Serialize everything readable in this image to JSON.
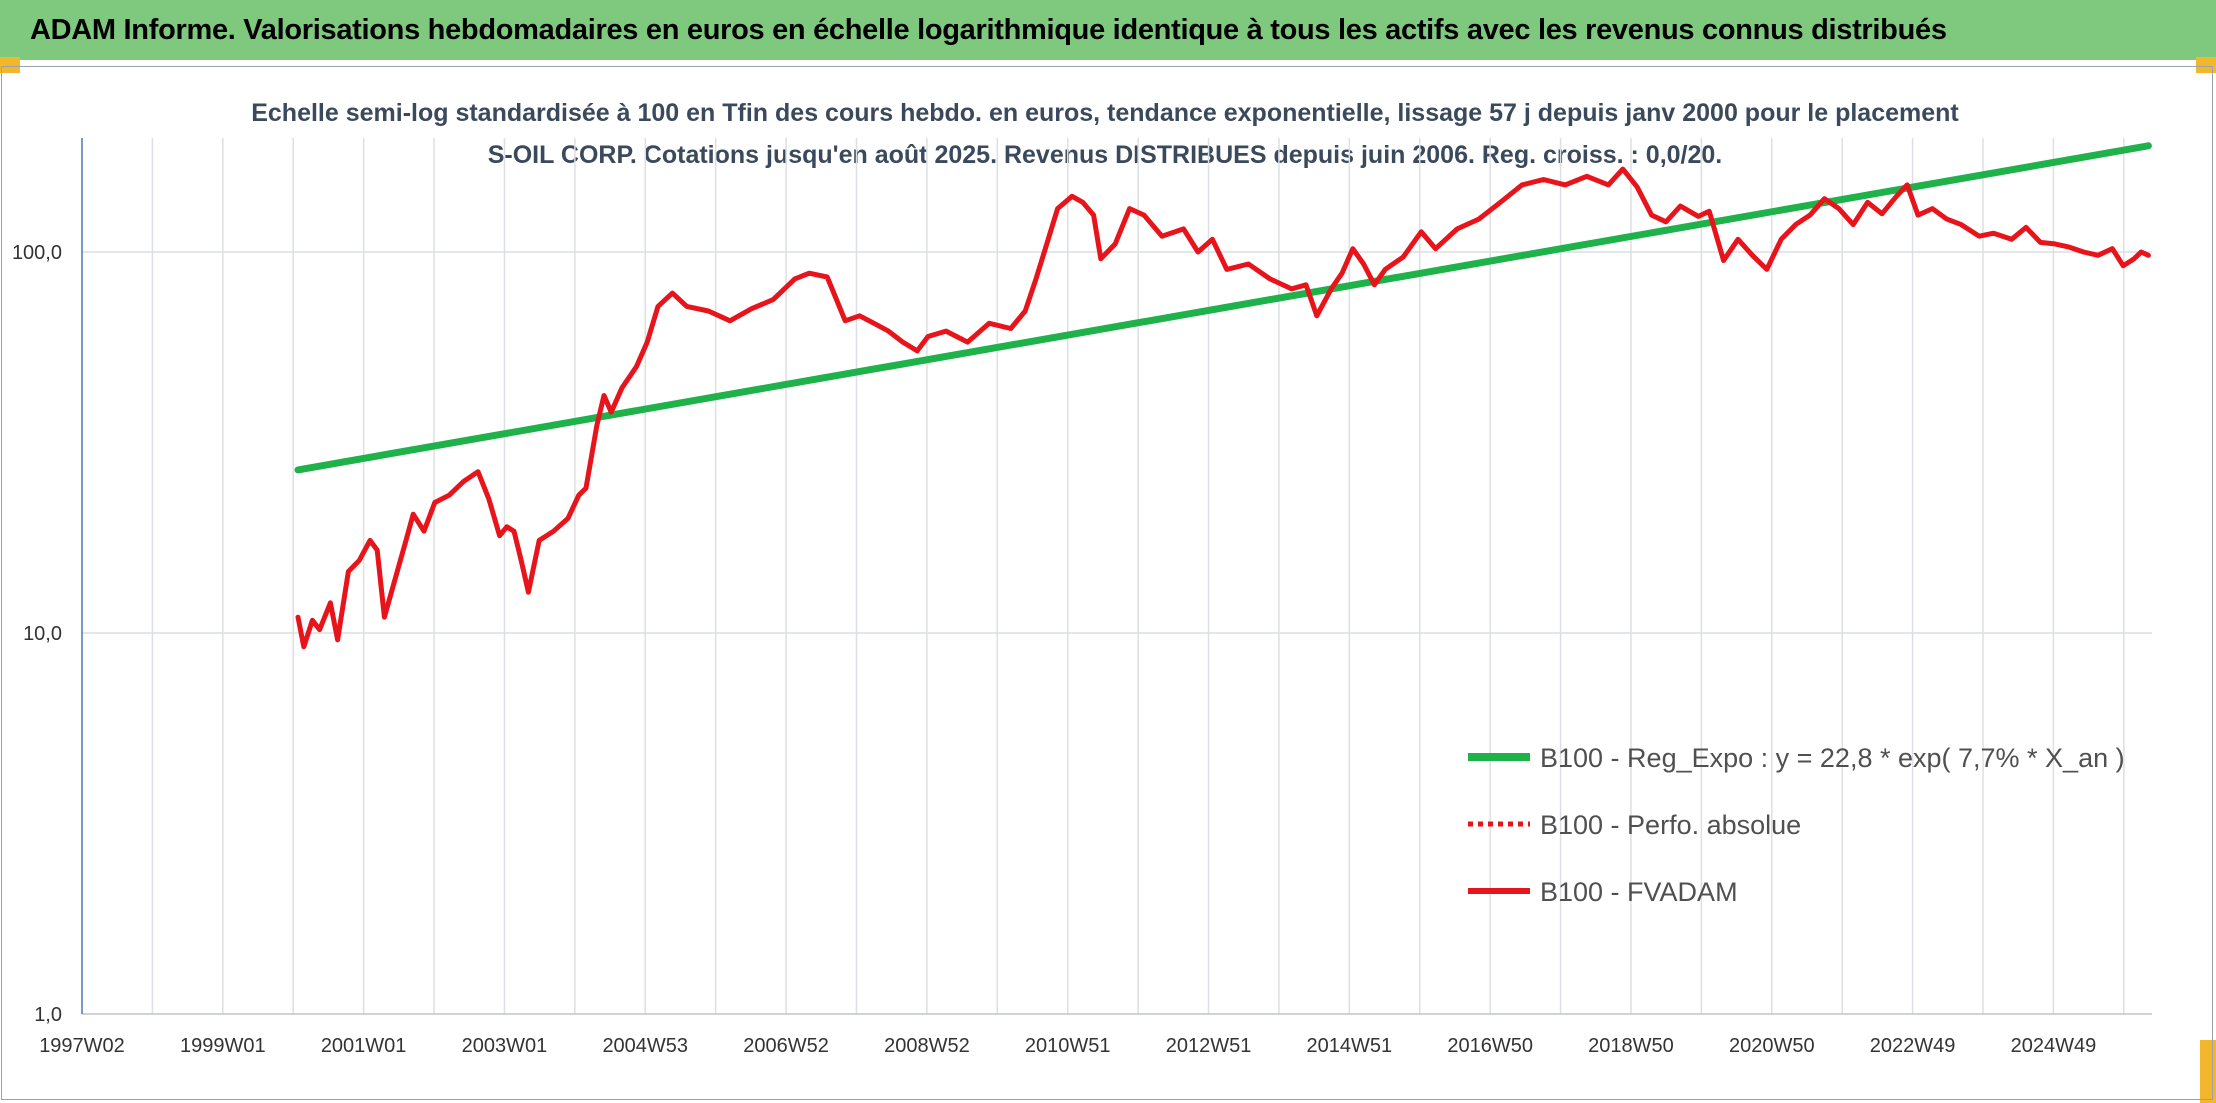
{
  "header": {
    "banner": "ADAM Informe. Valorisations hebdomadaires en euros en échelle logarithmique identique à tous les actifs avec les revenus connus distribués"
  },
  "chart_data": {
    "type": "line",
    "title": "Echelle semi-log standardisée à 100 en Tfin des cours hebdo. en euros, tendance exponentielle, lissage 57 j depuis janv 2000 pour le placement S-OIL CORP. Cotations jusqu'en août 2025. Revenus DISTRIBUES depuis juin 2006. Reg. croiss. : 0,0/20.",
    "xlabel": "",
    "ylabel": "",
    "y_scale": "log",
    "ylim": [
      1,
      200
    ],
    "y_ticks": [
      "1,0",
      "10,0",
      "100,0"
    ],
    "y_tick_values": [
      1,
      10,
      100
    ],
    "xlim": [
      1997.0,
      2025.75
    ],
    "x_ticks": [
      "1997W02",
      "1999W01",
      "2001W01",
      "2003W01",
      "2004W53",
      "2006W52",
      "2008W52",
      "2010W51",
      "2012W51",
      "2014W51",
      "2016W50",
      "2018W50",
      "2020W50",
      "2022W49",
      "2024W49"
    ],
    "grid": true,
    "legend_position": "bottom-right",
    "colors": {
      "trend": "#1fb24a",
      "perf": "#e8141b",
      "fvadam": "#e8141b",
      "grid": "#dcdfe3",
      "axis": "#4a78b5"
    },
    "series": [
      {
        "name": "B100 - Reg_Expo : y = 22,8 * exp( 7,7% *  X_an )",
        "style": "solid-green",
        "x": [
          2000.0,
          2025.7
        ],
        "y": [
          26.8,
          190
        ]
      },
      {
        "name": "B100 - Perfo. absolue",
        "style": "dotted-red",
        "x": [],
        "y": []
      },
      {
        "name": "B100 - FVADAM",
        "style": "solid-red",
        "x": [
          2000.0,
          2000.08,
          2000.2,
          2000.3,
          2000.45,
          2000.55,
          2000.7,
          2000.85,
          2001.0,
          2001.1,
          2001.2,
          2001.4,
          2001.5,
          2001.6,
          2001.75,
          2001.9,
          2002.1,
          2002.3,
          2002.5,
          2002.65,
          2002.8,
          2002.9,
          2003.0,
          2003.1,
          2003.2,
          2003.35,
          2003.55,
          2003.75,
          2003.9,
          2004.0,
          2004.15,
          2004.25,
          2004.35,
          2004.5,
          2004.7,
          2004.85,
          2005.0,
          2005.2,
          2005.4,
          2005.7,
          2006.0,
          2006.3,
          2006.6,
          2006.9,
          2007.1,
          2007.35,
          2007.6,
          2007.8,
          2008.0,
          2008.2,
          2008.4,
          2008.6,
          2008.75,
          2009.0,
          2009.3,
          2009.6,
          2009.9,
          2010.1,
          2010.25,
          2010.4,
          2010.55,
          2010.75,
          2010.9,
          2011.05,
          2011.15,
          2011.35,
          2011.55,
          2011.75,
          2012.0,
          2012.3,
          2012.5,
          2012.7,
          2012.9,
          2013.2,
          2013.5,
          2013.8,
          2014.0,
          2014.15,
          2014.35,
          2014.5,
          2014.65,
          2014.8,
          2014.95,
          2015.1,
          2015.35,
          2015.6,
          2015.8,
          2016.1,
          2016.4,
          2016.7,
          2017.0,
          2017.3,
          2017.6,
          2017.9,
          2018.2,
          2018.4,
          2018.6,
          2018.8,
          2019.0,
          2019.2,
          2019.45,
          2019.6,
          2019.8,
          2020.0,
          2020.2,
          2020.4,
          2020.6,
          2020.8,
          2021.0,
          2021.2,
          2021.4,
          2021.6,
          2021.8,
          2022.0,
          2022.2,
          2022.35,
          2022.5,
          2022.7,
          2022.9,
          2023.1,
          2023.35,
          2023.55,
          2023.8,
          2024.0,
          2024.2,
          2024.4,
          2024.6,
          2024.8,
          2025.0,
          2025.2,
          2025.35,
          2025.5,
          2025.6,
          2025.7
        ],
        "y": [
          11.0,
          9.2,
          10.8,
          10.2,
          12.0,
          9.6,
          14.5,
          15.5,
          17.5,
          16.5,
          11.0,
          15.0,
          17.5,
          20.5,
          18.5,
          22.0,
          23.0,
          25.0,
          26.5,
          22.5,
          18.0,
          19.0,
          18.5,
          15.5,
          12.8,
          17.5,
          18.5,
          20.0,
          23.0,
          24.0,
          35.0,
          42.0,
          38.0,
          44.0,
          50.0,
          58.0,
          72.0,
          78.0,
          72.0,
          70.0,
          66.0,
          71.0,
          75.0,
          85.0,
          88.0,
          86.0,
          66.0,
          68.0,
          65.0,
          62.0,
          58.0,
          55.0,
          60.0,
          62.0,
          58.0,
          65.0,
          63.0,
          70.0,
          85.0,
          105.0,
          130.0,
          140.0,
          135.0,
          125.0,
          96.0,
          105.0,
          130.0,
          125.0,
          110.0,
          115.0,
          100.0,
          108.0,
          90.0,
          93.0,
          85.0,
          80.0,
          82.0,
          68.0,
          80.0,
          88.0,
          102.0,
          93.0,
          82.0,
          90.0,
          97.0,
          113.0,
          102.0,
          115.0,
          122.0,
          135.0,
          150.0,
          155.0,
          150.0,
          158.0,
          150.0,
          165.0,
          148.0,
          125.0,
          120.0,
          132.0,
          124.0,
          128.0,
          95.0,
          108.0,
          98.0,
          90.0,
          108.0,
          118.0,
          125.0,
          138.0,
          130.0,
          118.0,
          135.0,
          126.0,
          140.0,
          150.0,
          125.0,
          130.0,
          122.0,
          118.0,
          110.0,
          112.0,
          108.0,
          116.0,
          106.0,
          105.0,
          103.0,
          100.0,
          98.0,
          102.0,
          92.0,
          96.0,
          100.0,
          98.0
        ]
      }
    ]
  }
}
